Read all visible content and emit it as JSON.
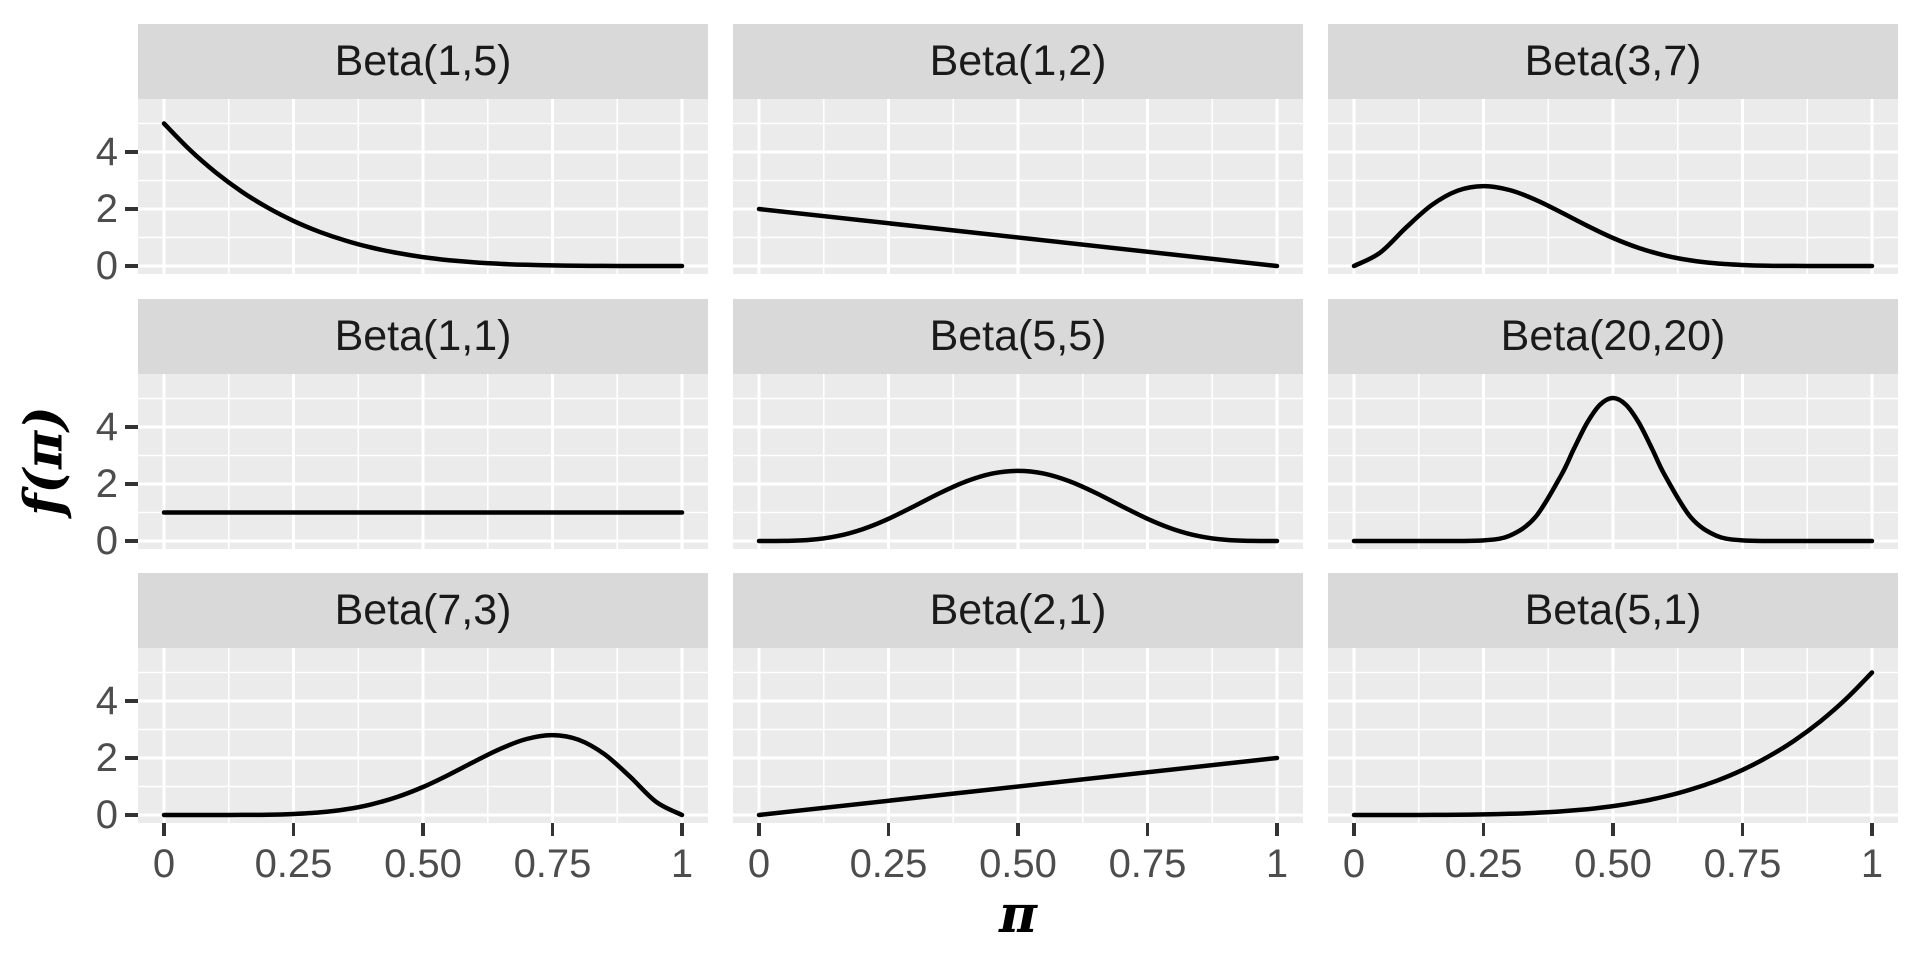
{
  "chart_data": {
    "type": "line",
    "xlabel": "π",
    "ylabel": "f(π)",
    "layout": {
      "rows": 3,
      "cols": 3,
      "grid": "on",
      "legend": "none",
      "theme": "ggplot-grey-facets"
    },
    "x_axis": {
      "ticks": [
        0,
        0.25,
        0.5,
        0.75,
        1
      ],
      "tick_labels": [
        "0",
        "0.25",
        "0.50",
        "0.75",
        "1"
      ],
      "minor_ticks": [
        0.125,
        0.375,
        0.625,
        0.875
      ],
      "range": [
        -0.05,
        1.05
      ]
    },
    "y_axis": {
      "ticks": [
        0,
        2,
        4
      ],
      "tick_labels": [
        "0",
        "2",
        "4"
      ],
      "minor_ticks": [
        1,
        3,
        5
      ],
      "range": [
        -0.28,
        5.86
      ]
    },
    "facets": [
      {
        "label": "Beta(1,5)",
        "alpha": 1,
        "beta": 5,
        "row": 0,
        "col": 0,
        "x": [
          0,
          0.05,
          0.1,
          0.15,
          0.2,
          0.25,
          0.3,
          0.35,
          0.4,
          0.45,
          0.5,
          0.55,
          0.6,
          0.65,
          0.7,
          0.75,
          0.8,
          0.85,
          0.9,
          0.95,
          1
        ],
        "y": [
          5,
          4.073,
          3.281,
          2.61,
          2.048,
          1.582,
          1.201,
          0.893,
          0.648,
          0.458,
          0.313,
          0.205,
          0.128,
          0.075,
          0.041,
          0.02,
          0.008,
          0.003,
          0.001,
          0,
          0
        ]
      },
      {
        "label": "Beta(1,2)",
        "alpha": 1,
        "beta": 2,
        "row": 0,
        "col": 1,
        "x": [
          0,
          1
        ],
        "y": [
          2,
          0
        ]
      },
      {
        "label": "Beta(3,7)",
        "alpha": 3,
        "beta": 7,
        "row": 0,
        "col": 2,
        "x": [
          0,
          0.05,
          0.1,
          0.15,
          0.2,
          0.25,
          0.3,
          0.35,
          0.4,
          0.45,
          0.5,
          0.55,
          0.6,
          0.65,
          0.7,
          0.75,
          0.8,
          0.85,
          0.9,
          0.95,
          1
        ],
        "y": [
          0,
          0.463,
          1.339,
          2.138,
          2.642,
          2.803,
          2.668,
          2.328,
          1.881,
          1.413,
          0.984,
          0.633,
          0.372,
          0.196,
          0.09,
          0.035,
          0.01,
          0.002,
          0,
          0,
          0
        ]
      },
      {
        "label": "Beta(1,1)",
        "alpha": 1,
        "beta": 1,
        "row": 1,
        "col": 0,
        "x": [
          0,
          1
        ],
        "y": [
          1,
          1
        ]
      },
      {
        "label": "Beta(5,5)",
        "alpha": 5,
        "beta": 5,
        "row": 1,
        "col": 1,
        "x": [
          0,
          0.05,
          0.1,
          0.15,
          0.2,
          0.25,
          0.3,
          0.35,
          0.4,
          0.45,
          0.5,
          0.55,
          0.6,
          0.65,
          0.7,
          0.75,
          0.8,
          0.85,
          0.9,
          0.95,
          1
        ],
        "y": [
          0,
          0.003,
          0.041,
          0.167,
          0.413,
          0.779,
          1.225,
          1.688,
          2.09,
          2.364,
          2.461,
          2.364,
          2.09,
          1.688,
          1.225,
          0.779,
          0.413,
          0.167,
          0.041,
          0.003,
          0
        ]
      },
      {
        "label": "Beta(20,20)",
        "alpha": 20,
        "beta": 20,
        "row": 1,
        "col": 2,
        "x": [
          0,
          0.1,
          0.2,
          0.25,
          0.3,
          0.35,
          0.4,
          0.425,
          0.45,
          0.475,
          0.5,
          0.525,
          0.55,
          0.575,
          0.6,
          0.65,
          0.7,
          0.75,
          0.8,
          0.9,
          1
        ],
        "y": [
          0,
          0,
          0.001,
          0.021,
          0.183,
          0.834,
          2.309,
          3.256,
          4.146,
          4.783,
          5.016,
          4.783,
          4.146,
          3.256,
          2.309,
          0.834,
          0.183,
          0.021,
          0.001,
          0,
          0
        ]
      },
      {
        "label": "Beta(7,3)",
        "alpha": 7,
        "beta": 3,
        "row": 2,
        "col": 0,
        "x": [
          0,
          0.05,
          0.1,
          0.15,
          0.2,
          0.25,
          0.3,
          0.35,
          0.4,
          0.45,
          0.5,
          0.55,
          0.6,
          0.65,
          0.7,
          0.75,
          0.8,
          0.85,
          0.9,
          0.95,
          1
        ],
        "y": [
          0,
          0,
          0,
          0.002,
          0.01,
          0.035,
          0.09,
          0.196,
          0.372,
          0.633,
          0.984,
          1.413,
          1.881,
          2.328,
          2.668,
          2.803,
          2.642,
          2.138,
          1.339,
          0.463,
          0
        ]
      },
      {
        "label": "Beta(2,1)",
        "alpha": 2,
        "beta": 1,
        "row": 2,
        "col": 1,
        "x": [
          0,
          1
        ],
        "y": [
          0,
          2
        ]
      },
      {
        "label": "Beta(5,1)",
        "alpha": 5,
        "beta": 1,
        "row": 2,
        "col": 2,
        "x": [
          0,
          0.05,
          0.1,
          0.15,
          0.2,
          0.25,
          0.3,
          0.35,
          0.4,
          0.45,
          0.5,
          0.55,
          0.6,
          0.65,
          0.7,
          0.75,
          0.8,
          0.85,
          0.9,
          0.95,
          1
        ],
        "y": [
          0,
          0,
          0.001,
          0.003,
          0.008,
          0.02,
          0.041,
          0.075,
          0.128,
          0.205,
          0.313,
          0.458,
          0.648,
          0.893,
          1.201,
          1.582,
          2.048,
          2.61,
          3.281,
          4.073,
          5
        ]
      }
    ]
  },
  "colors": {
    "page_bg": "#FFFFFF",
    "panel_bg": "#EBEBEB",
    "strip_bg": "#D9D9D9",
    "grid": "#FFFFFF",
    "curve": "#000000",
    "tick_text": "#4D4D4D",
    "strip_text": "#1A1A1A",
    "axis_title": "#000000",
    "tick_mark": "#333333"
  }
}
